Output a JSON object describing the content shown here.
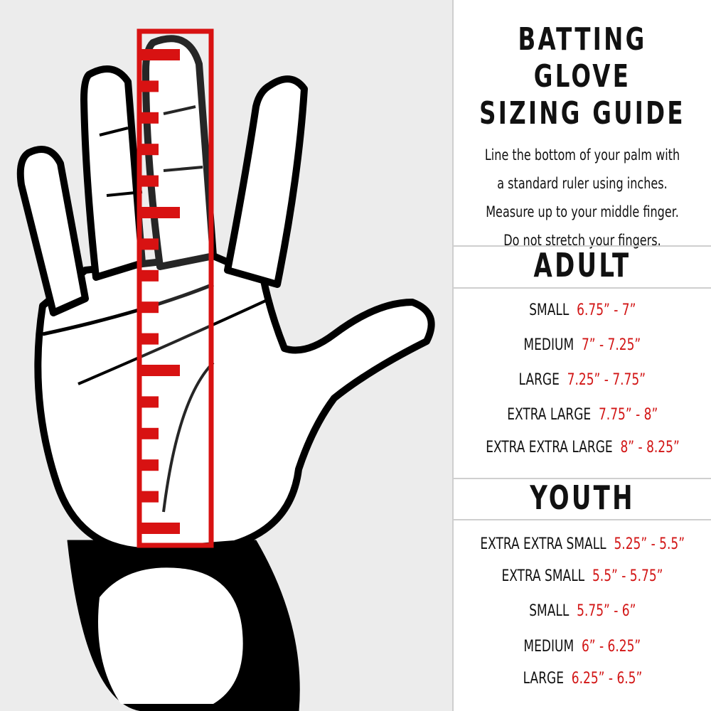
{
  "title_lines": [
    "BATTING GLOVE",
    "SIZING GUIDE"
  ],
  "instructions": [
    "Line the bottom of your palm with",
    "a standard ruler using inches.",
    "Measure up to your middle finger.",
    "Do not stretch your fingers."
  ],
  "adult": {
    "heading": "ADULT",
    "sizes": [
      {
        "size": "SMALL",
        "range": "6.75” - 7”"
      },
      {
        "size": "MEDIUM",
        "range": "7” - 7.25”"
      },
      {
        "size": "LARGE",
        "range": "7.25” - 7.75”"
      },
      {
        "size": "EXTRA LARGE",
        "range": "7.75” - 8”"
      },
      {
        "size": "EXTRA EXTRA LARGE",
        "range": "8” - 8.25”"
      }
    ]
  },
  "youth": {
    "heading": "YOUTH",
    "sizes": [
      {
        "size": "EXTRA EXTRA SMALL",
        "range": "5.25” - 5.5”"
      },
      {
        "size": "EXTRA SMALL",
        "range": "5.5” - 5.75”"
      },
      {
        "size": "SMALL",
        "range": "5.75” - 6”"
      },
      {
        "size": "MEDIUM",
        "range": "6” - 6.25”"
      },
      {
        "size": "LARGE",
        "range": "6.25” - 6.5”"
      }
    ]
  },
  "colors": {
    "accent": "#d21515",
    "text": "#111111",
    "background": "#ececec",
    "panel": "#ffffff"
  },
  "illustration": {
    "subject": "hand-with-ruler-icon"
  }
}
